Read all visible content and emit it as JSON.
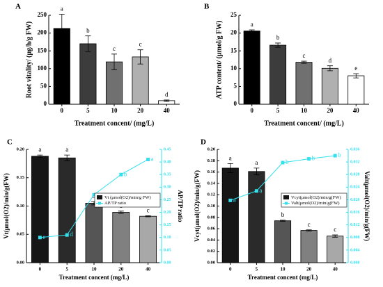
{
  "chart_data": [
    {
      "type": "bar",
      "panel": "A",
      "ylabel": "Root vitality/ (μg/h/g FW)",
      "xlabel": "Treatment concent/ (mg/L)",
      "categories": [
        "0",
        "5",
        "10",
        "20",
        "40"
      ],
      "series": [
        {
          "colors": [
            "#000000",
            "#3c3c3c",
            "#707070",
            "#b0b0b0",
            "#ffffff"
          ],
          "values": [
            213,
            170,
            119,
            133,
            10
          ],
          "errors": [
            40,
            22,
            22,
            20,
            2
          ],
          "letters": [
            "a",
            "b",
            "c",
            "c",
            "d"
          ]
        }
      ],
      "ylim": [
        0,
        250
      ],
      "yticks": [
        0,
        50,
        100,
        150,
        200,
        250
      ]
    },
    {
      "type": "bar",
      "panel": "B",
      "ylabel": "ATP content/ (μmol/g FW)",
      "xlabel": "Treatment concent/ (mg/L)",
      "categories": [
        "0",
        "5",
        "10",
        "20",
        "40"
      ],
      "series": [
        {
          "colors": [
            "#000000",
            "#3c3c3c",
            "#707070",
            "#b0b0b0",
            "#ffffff"
          ],
          "values": [
            20.6,
            16.6,
            11.8,
            10.1,
            8.0
          ],
          "errors": [
            0.3,
            0.6,
            0.3,
            0.7,
            0.6
          ],
          "letters": [
            "a",
            "b",
            "c",
            "d",
            "e"
          ]
        }
      ],
      "ylim": [
        0,
        25
      ],
      "yticks": [
        0,
        5,
        10,
        15,
        20,
        25
      ]
    },
    {
      "type": "bar-line",
      "panel": "C",
      "ylabel": "Vt(μmol(O2)/min/g(FW)",
      "y2label": "AP/TP ratio",
      "xlabel": "Treatment concent (mg/L)",
      "categories": [
        "0",
        "5",
        "10",
        "20",
        "40"
      ],
      "series": [
        {
          "name": "Vt (μmol(O2)/min/g FW)",
          "colors": [
            "#161616",
            "#2a2a2a",
            "#555555",
            "#808080",
            "#a8a8a8"
          ],
          "values": [
            0.188,
            0.185,
            0.105,
            0.089,
            0.082
          ],
          "errors": [
            0.002,
            0.005,
            0.003,
            0.002,
            0.001
          ],
          "letters": [
            "a",
            "a",
            "b",
            "c",
            "c"
          ]
        },
        {
          "name": "AP/TP ratio",
          "color": "#33e0ee",
          "axis": "y2",
          "values": [
            0.1,
            0.11,
            0.27,
            0.35,
            0.41
          ],
          "letters": [
            "e",
            "d",
            "c",
            "b",
            "a"
          ]
        }
      ],
      "ylim": [
        0,
        0.2
      ],
      "yticks": [
        {
          "value": 0,
          "label": "0.00"
        },
        {
          "value": 0.05,
          "label": "0.05"
        },
        {
          "value": 0.1,
          "label": "0.10"
        },
        {
          "value": 0.15,
          "label": "0.15"
        },
        {
          "value": 0.2,
          "label": "0.20"
        }
      ],
      "y2lim": [
        0,
        0.45
      ],
      "y2ticks": [
        {
          "value": 0,
          "label": "0.00"
        },
        {
          "value": 0.05,
          "label": "0.05"
        },
        {
          "value": 0.1,
          "label": "0.10"
        },
        {
          "value": 0.15,
          "label": "0.15"
        },
        {
          "value": 0.2,
          "label": "0.20"
        },
        {
          "value": 0.25,
          "label": "0.25"
        },
        {
          "value": 0.3,
          "label": "0.30"
        },
        {
          "value": 0.35,
          "label": "0.35"
        },
        {
          "value": 0.4,
          "label": "0.40"
        },
        {
          "value": 0.45,
          "label": "0.45"
        }
      ],
      "legend": "upper right"
    },
    {
      "type": "bar-line",
      "panel": "D",
      "ylabel": "Vcyt(μmol(O2)/min/g(FW)",
      "y2label": "Valt(μmol(O2)/min/g(FW)",
      "xlabel": "Treatment concent (mg/L)",
      "categories": [
        "0",
        "5",
        "10",
        "20",
        "40"
      ],
      "series": [
        {
          "name": "Vcyt(μmol(O2)/min/g(FW)",
          "colors": [
            "#161616",
            "#2a2a2a",
            "#555555",
            "#808080",
            "#a8a8a8"
          ],
          "values": [
            0.167,
            0.161,
            0.074,
            0.057,
            0.047
          ],
          "errors": [
            0.008,
            0.006,
            0.001,
            0.001,
            0.002
          ],
          "letters": [
            "a",
            "a",
            "b",
            "c",
            "c"
          ]
        },
        {
          "name": "Valt(μmol(O2)/min/g(FW)",
          "color": "#33e0ee",
          "axis": "y2",
          "values": [
            0.0198,
            0.0228,
            0.0318,
            0.033,
            0.034
          ],
          "letters": [
            "a",
            "a",
            "b",
            "b",
            "b"
          ]
        }
      ],
      "ylim": [
        0,
        0.2
      ],
      "yticks": [
        {
          "value": 0,
          "label": "0.00"
        },
        {
          "value": 0.02,
          "label": "0.02"
        },
        {
          "value": 0.04,
          "label": "0.04"
        },
        {
          "value": 0.06,
          "label": "0.06"
        },
        {
          "value": 0.08,
          "label": "0.08"
        },
        {
          "value": 0.1,
          "label": "0.10"
        },
        {
          "value": 0.12,
          "label": "0.12"
        },
        {
          "value": 0.14,
          "label": "0.14"
        },
        {
          "value": 0.16,
          "label": "0.16"
        },
        {
          "value": 0.18,
          "label": "0.18"
        },
        {
          "value": 0.2,
          "label": "0.20"
        }
      ],
      "y2lim": [
        0,
        0.036
      ],
      "y2ticks": [
        {
          "value": 0,
          "label": "0.000"
        },
        {
          "value": 0.004,
          "label": "0.004"
        },
        {
          "value": 0.008,
          "label": "0.008"
        },
        {
          "value": 0.012,
          "label": "0.012"
        },
        {
          "value": 0.016,
          "label": "0.016"
        },
        {
          "value": 0.02,
          "label": "0.020"
        },
        {
          "value": 0.024,
          "label": "0.024"
        },
        {
          "value": 0.028,
          "label": "0.028"
        },
        {
          "value": 0.032,
          "label": "0.032"
        },
        {
          "value": 0.036,
          "label": "0.036"
        }
      ],
      "legend": "upper right"
    }
  ]
}
